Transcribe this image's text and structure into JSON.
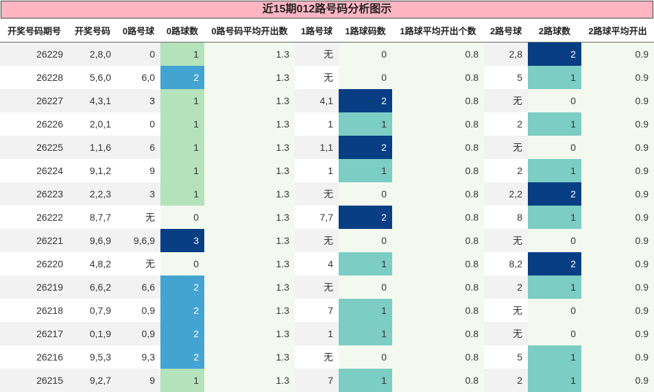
{
  "title": "近15期012路号码分析图示",
  "columns": [
    "开奖号码期号",
    "开奖号码",
    "0路号球",
    "0路球数",
    "0路号码平均开出数",
    "1路号球",
    "1路球码数",
    "1路球平均开出个数",
    "2路号球",
    "2路球数",
    "2路球平均开出"
  ],
  "colors": {
    "title_bg": "#ffb6c1",
    "count_0": "#f3f9ee",
    "count_1": "#7ccdc4",
    "count_1_zero_route": "#b3e2bb",
    "count_2": "#43a4d1",
    "count_3": "#083e84"
  },
  "chart_data": {
    "type": "table",
    "title": "近15期012路号码分析图示",
    "columns": [
      "开奖号码期号",
      "开奖号码",
      "0路号球",
      "0路球数",
      "0路号码平均开出数",
      "1路号球",
      "1路球码数",
      "1路球平均开出个数",
      "2路号球",
      "2路球数",
      "2路球平均开出"
    ],
    "rows": [
      [
        "26229",
        "2,8,0",
        "0",
        "1",
        "1.3",
        "无",
        "0",
        "0.8",
        "2,8",
        "2",
        "0.9"
      ],
      [
        "26228",
        "5,6,0",
        "6,0",
        "2",
        "1.3",
        "无",
        "0",
        "0.8",
        "5",
        "1",
        "0.9"
      ],
      [
        "26227",
        "4,3,1",
        "3",
        "1",
        "1.3",
        "4,1",
        "2",
        "0.8",
        "无",
        "0",
        "0.9"
      ],
      [
        "26226",
        "2,0,1",
        "0",
        "1",
        "1.3",
        "1",
        "1",
        "0.8",
        "2",
        "1",
        "0.9"
      ],
      [
        "26225",
        "1,1,6",
        "6",
        "1",
        "1.3",
        "1,1",
        "2",
        "0.8",
        "无",
        "0",
        "0.9"
      ],
      [
        "26224",
        "9,1,2",
        "9",
        "1",
        "1.3",
        "1",
        "1",
        "0.8",
        "2",
        "1",
        "0.9"
      ],
      [
        "26223",
        "2,2,3",
        "3",
        "1",
        "1.3",
        "无",
        "0",
        "0.8",
        "2,2",
        "2",
        "0.9"
      ],
      [
        "26222",
        "8,7,7",
        "无",
        "0",
        "1.3",
        "7,7",
        "2",
        "0.8",
        "8",
        "1",
        "0.9"
      ],
      [
        "26221",
        "9,6,9",
        "9,6,9",
        "3",
        "1.3",
        "无",
        "0",
        "0.8",
        "无",
        "0",
        "0.9"
      ],
      [
        "26220",
        "4,8,2",
        "无",
        "0",
        "1.3",
        "4",
        "1",
        "0.8",
        "8,2",
        "2",
        "0.9"
      ],
      [
        "26219",
        "6,6,2",
        "6,6",
        "2",
        "1.3",
        "无",
        "0",
        "0.8",
        "2",
        "1",
        "0.9"
      ],
      [
        "26218",
        "0,7,9",
        "0,9",
        "2",
        "1.3",
        "7",
        "1",
        "0.8",
        "无",
        "0",
        "0.9"
      ],
      [
        "26217",
        "0,1,9",
        "0,9",
        "2",
        "1.3",
        "1",
        "1",
        "0.8",
        "无",
        "0",
        "0.9"
      ],
      [
        "26216",
        "9,5,3",
        "9,3",
        "2",
        "1.3",
        "无",
        "0",
        "0.8",
        "5",
        "1",
        "0.9"
      ],
      [
        "26215",
        "9,2,7",
        "9",
        "1",
        "1.3",
        "7",
        "1",
        "0.8",
        "2",
        "1",
        "0.9"
      ]
    ]
  }
}
